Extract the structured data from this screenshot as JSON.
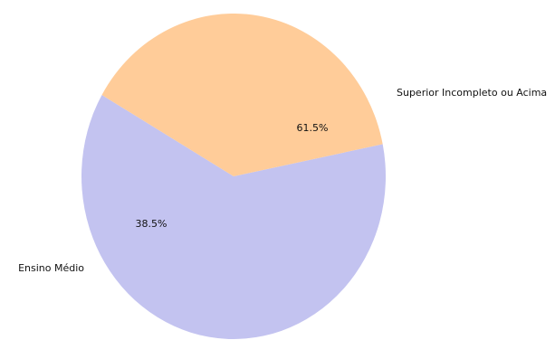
{
  "chart_data": {
    "type": "pie",
    "title": "",
    "labels": [
      "Superior Incompleto ou Acima",
      "Ensino Médio"
    ],
    "values": [
      61.5,
      38.5
    ],
    "percent_labels": [
      "61.5%",
      "38.5%"
    ],
    "colors": [
      "#c3c3f0",
      "#ffcc99"
    ],
    "start_angle_deg": 150,
    "direction": "counterclockwise",
    "legend": "none"
  }
}
